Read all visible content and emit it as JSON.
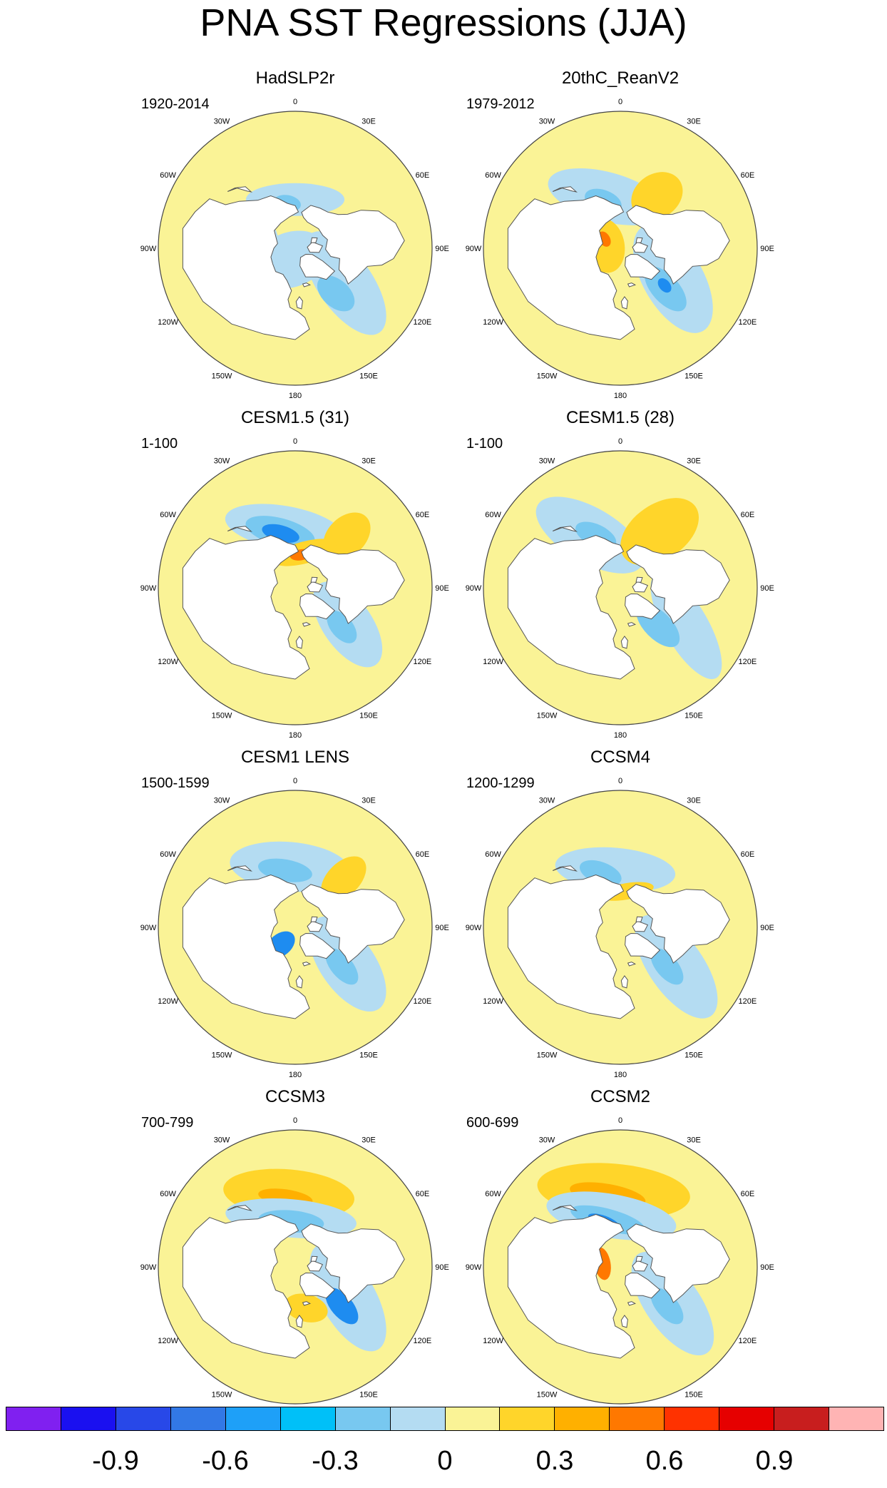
{
  "title": "PNA SST Regressions (JJA)",
  "colors": {
    "ocean_bg": "#faf396",
    "land": "#ffffff",
    "coast": "#555555"
  },
  "lon_labels": [
    "180",
    "150E",
    "120E",
    "90E",
    "60E",
    "30E",
    "0",
    "30W",
    "60W",
    "90W",
    "120W",
    "150W"
  ],
  "panels": [
    {
      "title": "HadSLP2r",
      "period": "1920-2014",
      "blobs": [
        {
          "lon": 180,
          "lat": 58,
          "r": 0.18,
          "ry": 0.06,
          "c": "#b4dcf2"
        },
        {
          "lon": 170,
          "lat": 60,
          "r": 0.05,
          "ry": 0.03,
          "c": "#78c8f0"
        },
        {
          "lon": 305,
          "lat": 50,
          "r": 0.22,
          "ry": 0.1,
          "c": "#b4dcf2"
        },
        {
          "lon": 318,
          "lat": 50,
          "r": 0.08,
          "ry": 0.05,
          "c": "#78c8f0"
        },
        {
          "lon": 20,
          "lat": 82,
          "r": 0.14,
          "ry": 0.1,
          "c": "#b4dcf2"
        },
        {
          "lon": 110,
          "lat": 68,
          "r": 0.1,
          "ry": 0.05,
          "c": "#b4dcf2"
        }
      ]
    },
    {
      "title": "20thC_ReanV2",
      "period": "1979-2012",
      "blobs": [
        {
          "lon": 165,
          "lat": 55,
          "r": 0.22,
          "ry": 0.09,
          "c": "#b4dcf2"
        },
        {
          "lon": 160,
          "lat": 57,
          "r": 0.07,
          "ry": 0.04,
          "c": "#78c8f0"
        },
        {
          "lon": 215,
          "lat": 48,
          "r": 0.1,
          "ry": 0.08,
          "c": "#ffd52a"
        },
        {
          "lon": 300,
          "lat": 50,
          "r": 0.22,
          "ry": 0.11,
          "c": "#b4dcf2"
        },
        {
          "lon": 312,
          "lat": 50,
          "r": 0.1,
          "ry": 0.05,
          "c": "#78c8f0"
        },
        {
          "lon": 310,
          "lat": 52,
          "r": 0.03,
          "ry": 0.02,
          "c": "#1e8cf0"
        },
        {
          "lon": 100,
          "lat": 80,
          "r": 0.1,
          "ry": 0.07,
          "c": "#ffd52a"
        },
        {
          "lon": 120,
          "lat": 78,
          "r": 0.03,
          "ry": 0.02,
          "c": "#ff7800"
        }
      ]
    },
    {
      "title": "CESM1.5 (31)",
      "period": "1-100",
      "blobs": [
        {
          "lon": 170,
          "lat": 50,
          "r": 0.22,
          "ry": 0.08,
          "c": "#b4dcf2"
        },
        {
          "lon": 165,
          "lat": 52,
          "r": 0.13,
          "ry": 0.05,
          "c": "#78c8f0"
        },
        {
          "lon": 165,
          "lat": 53,
          "r": 0.07,
          "ry": 0.03,
          "c": "#1e8cf0"
        },
        {
          "lon": 225,
          "lat": 42,
          "r": 0.1,
          "ry": 0.07,
          "c": "#ffd52a"
        },
        {
          "lon": 195,
          "lat": 66,
          "r": 0.12,
          "ry": 0.04,
          "c": "#ffd52a"
        },
        {
          "lon": 190,
          "lat": 68,
          "r": 0.04,
          "ry": 0.02,
          "c": "#ff7800"
        },
        {
          "lon": 305,
          "lat": 48,
          "r": 0.18,
          "ry": 0.09,
          "c": "#b4dcf2"
        },
        {
          "lon": 310,
          "lat": 50,
          "r": 0.07,
          "ry": 0.04,
          "c": "#78c8f0"
        }
      ]
    },
    {
      "title": "CESM1.5 (28)",
      "period": "1-100",
      "blobs": [
        {
          "lon": 150,
          "lat": 50,
          "r": 0.22,
          "ry": 0.1,
          "c": "#b4dcf2"
        },
        {
          "lon": 155,
          "lat": 52,
          "r": 0.08,
          "ry": 0.04,
          "c": "#78c8f0"
        },
        {
          "lon": 215,
          "lat": 45,
          "r": 0.16,
          "ry": 0.1,
          "c": "#ffd52a"
        },
        {
          "lon": 300,
          "lat": 40,
          "r": 0.22,
          "ry": 0.08,
          "c": "#b4dcf2"
        },
        {
          "lon": 315,
          "lat": 55,
          "r": 0.1,
          "ry": 0.05,
          "c": "#78c8f0"
        }
      ]
    },
    {
      "title": "CESM1 LENS",
      "period": "1500-1599",
      "blobs": [
        {
          "lon": 175,
          "lat": 50,
          "r": 0.22,
          "ry": 0.09,
          "c": "#b4dcf2"
        },
        {
          "lon": 170,
          "lat": 52,
          "r": 0.1,
          "ry": 0.04,
          "c": "#78c8f0"
        },
        {
          "lon": 225,
          "lat": 45,
          "r": 0.1,
          "ry": 0.06,
          "c": "#ffd52a"
        },
        {
          "lon": 305,
          "lat": 48,
          "r": 0.2,
          "ry": 0.1,
          "c": "#b4dcf2"
        },
        {
          "lon": 310,
          "lat": 50,
          "r": 0.08,
          "ry": 0.04,
          "c": "#78c8f0"
        },
        {
          "lon": 40,
          "lat": 75,
          "r": 0.06,
          "ry": 0.04,
          "c": "#1e8cf0"
        }
      ]
    },
    {
      "title": "CCSM4",
      "period": "1200-1299",
      "blobs": [
        {
          "lon": 175,
          "lat": 52,
          "r": 0.22,
          "ry": 0.08,
          "c": "#b4dcf2"
        },
        {
          "lon": 160,
          "lat": 52,
          "r": 0.08,
          "ry": 0.04,
          "c": "#78c8f0"
        },
        {
          "lon": 190,
          "lat": 66,
          "r": 0.1,
          "ry": 0.03,
          "c": "#ffd52a"
        },
        {
          "lon": 305,
          "lat": 45,
          "r": 0.22,
          "ry": 0.1,
          "c": "#b4dcf2"
        },
        {
          "lon": 310,
          "lat": 50,
          "r": 0.08,
          "ry": 0.04,
          "c": "#78c8f0"
        }
      ]
    },
    {
      "title": "CCSM3",
      "period": "700-799",
      "blobs": [
        {
          "lon": 175,
          "lat": 42,
          "r": 0.24,
          "ry": 0.09,
          "c": "#ffd52a"
        },
        {
          "lon": 172,
          "lat": 44,
          "r": 0.1,
          "ry": 0.03,
          "c": "#ffb000"
        },
        {
          "lon": 175,
          "lat": 58,
          "r": 0.24,
          "ry": 0.07,
          "c": "#b4dcf2"
        },
        {
          "lon": 175,
          "lat": 60,
          "r": 0.12,
          "ry": 0.04,
          "c": "#78c8f0"
        },
        {
          "lon": 300,
          "lat": 50,
          "r": 0.22,
          "ry": 0.1,
          "c": "#b4dcf2"
        },
        {
          "lon": 310,
          "lat": 50,
          "r": 0.08,
          "ry": 0.04,
          "c": "#1e8cf0"
        },
        {
          "lon": 345,
          "lat": 62,
          "r": 0.08,
          "ry": 0.05,
          "c": "#ffd52a"
        }
      ]
    },
    {
      "title": "CCSM2",
      "period": "600-699",
      "blobs": [
        {
          "lon": 175,
          "lat": 40,
          "r": 0.28,
          "ry": 0.1,
          "c": "#ffd52a"
        },
        {
          "lon": 170,
          "lat": 42,
          "r": 0.14,
          "ry": 0.04,
          "c": "#ffb000"
        },
        {
          "lon": 170,
          "lat": 56,
          "r": 0.24,
          "ry": 0.08,
          "c": "#b4dcf2"
        },
        {
          "lon": 165,
          "lat": 58,
          "r": 0.14,
          "ry": 0.04,
          "c": "#78c8f0"
        },
        {
          "lon": 160,
          "lat": 58,
          "r": 0.06,
          "ry": 0.02,
          "c": "#1e8cf0"
        },
        {
          "lon": 305,
          "lat": 48,
          "r": 0.22,
          "ry": 0.1,
          "c": "#b4dcf2"
        },
        {
          "lon": 310,
          "lat": 50,
          "r": 0.08,
          "ry": 0.04,
          "c": "#78c8f0"
        },
        {
          "lon": 100,
          "lat": 78,
          "r": 0.06,
          "ry": 0.03,
          "c": "#ff7800"
        }
      ]
    }
  ],
  "colorbar": {
    "colors": [
      "#8020f0",
      "#1a10f0",
      "#2848e8",
      "#3278e6",
      "#1ea0f8",
      "#00c0f8",
      "#78c8f0",
      "#b4dcf2",
      "#faf396",
      "#ffd52a",
      "#ffb000",
      "#ff7800",
      "#ff3200",
      "#e60000",
      "#c81e1e",
      "#ffb4b4"
    ],
    "labels": [
      "-0.9",
      "-0.6",
      "-0.3",
      "0",
      "0.3",
      "0.6",
      "0.9"
    ],
    "label_bounds": [
      1,
      4,
      7,
      10,
      13
    ]
  }
}
